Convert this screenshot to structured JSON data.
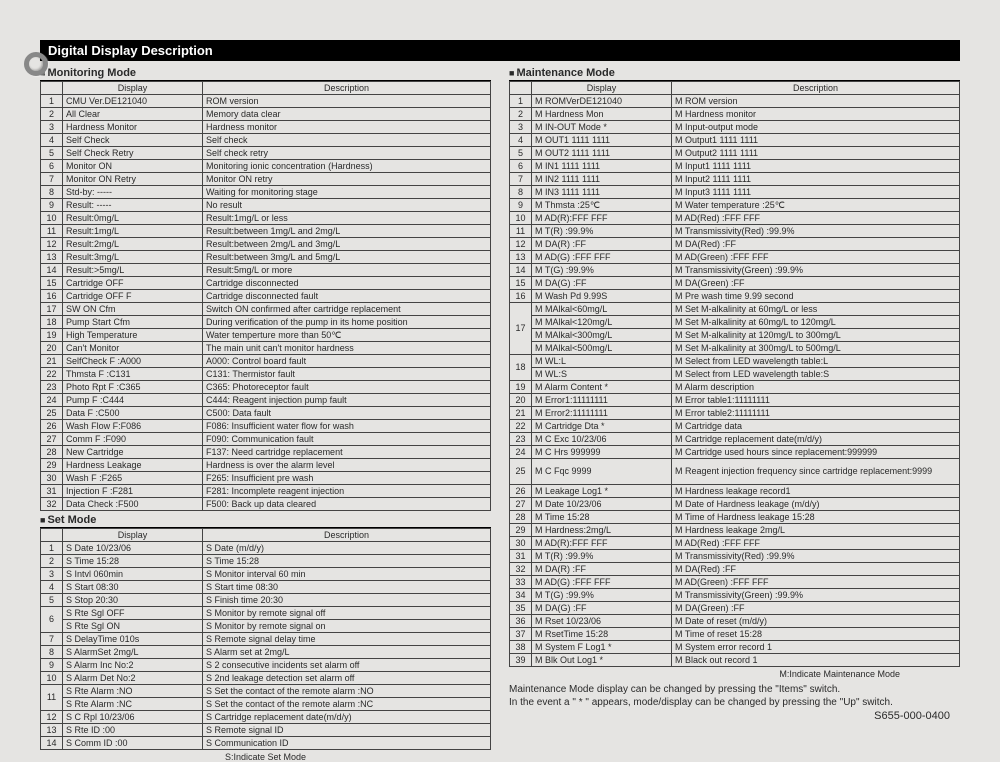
{
  "title": "Digital  Display  Description",
  "partNumber": "S655-000-0400",
  "footnote1": "Maintenance Mode display can be changed by pressing the \"Items\" switch.",
  "footnote2": "In the event a \" * \" appears, mode/display can be changed by pressing the \"Up\" switch.",
  "monitor": {
    "header": "Monitoring  Mode",
    "colDisplay": "Display",
    "colDesc": "Description",
    "rows": [
      {
        "n": "1",
        "d": "CMU Ver.DE121040",
        "e": "ROM version"
      },
      {
        "n": "2",
        "d": "All Clear",
        "e": "Memory data clear"
      },
      {
        "n": "3",
        "d": "Hardness Monitor",
        "e": "Hardness monitor"
      },
      {
        "n": "4",
        "d": "Self Check",
        "e": "Self check"
      },
      {
        "n": "5",
        "d": "Self Check Retry",
        "e": "Self check retry"
      },
      {
        "n": "6",
        "d": "Monitor ON",
        "e": "Monitoring ionic concentration (Hardness)"
      },
      {
        "n": "7",
        "d": "Monitor ON Retry",
        "e": "Monitor ON retry"
      },
      {
        "n": "8",
        "d": "Std-by: -----",
        "e": "Waiting for monitoring stage"
      },
      {
        "n": "9",
        "d": "Result: -----",
        "e": "No result"
      },
      {
        "n": "10",
        "d": "Result:0mg/L",
        "e": "Result:1mg/L or less"
      },
      {
        "n": "11",
        "d": "Result:1mg/L",
        "e": "Result:between 1mg/L and 2mg/L"
      },
      {
        "n": "12",
        "d": "Result:2mg/L",
        "e": "Result:between 2mg/L and 3mg/L"
      },
      {
        "n": "13",
        "d": "Result:3mg/L",
        "e": "Result:between 3mg/L and 5mg/L"
      },
      {
        "n": "14",
        "d": "Result:>5mg/L",
        "e": "Result:5mg/L or more"
      },
      {
        "n": "15",
        "d": "Cartridge OFF",
        "e": "Cartridge disconnected"
      },
      {
        "n": "16",
        "d": "Cartridge OFF F",
        "e": "Cartridge disconnected fault"
      },
      {
        "n": "17",
        "d": "SW ON Cfm",
        "e": "Switch ON confirmed after cartridge replacement"
      },
      {
        "n": "18",
        "d": "Pump Start Cfm",
        "e": "During verification of the pump in its home position"
      },
      {
        "n": "19",
        "d": "High Temperature",
        "e": "Water temperture more than 50℃"
      },
      {
        "n": "20",
        "d": "Can't Monitor",
        "e": "The main unit can't monitor hardness"
      },
      {
        "n": "21",
        "d": "SelfCheck F :A000",
        "e": "A000: Control board fault"
      },
      {
        "n": "22",
        "d": "Thmsta F    :C131",
        "e": "C131: Thermistor fault"
      },
      {
        "n": "23",
        "d": "Photo Rpt F :C365",
        "e": "C365: Photoreceptor fault"
      },
      {
        "n": "24",
        "d": "Pump F      :C444",
        "e": "C444: Reagent injection pump fault"
      },
      {
        "n": "25",
        "d": "Data F      :C500",
        "e": "C500: Data fault"
      },
      {
        "n": "26",
        "d": "Wash Flow F:F086",
        "e": "F086: Insufficient water flow for wash"
      },
      {
        "n": "27",
        "d": "Comm F     :F090",
        "e": "F090: Communication fault"
      },
      {
        "n": "28",
        "d": "New Cartridge",
        "e": "F137: Need cartridge replacement"
      },
      {
        "n": "29",
        "d": "Hardness Leakage",
        "e": "Hardness is over the alarm level"
      },
      {
        "n": "30",
        "d": "Wash F      :F265",
        "e": "F265: Insufficient pre wash"
      },
      {
        "n": "31",
        "d": "Injection F  :F281",
        "e": "F281: Incomplete reagent injection"
      },
      {
        "n": "32",
        "d": "Data Check  :F500",
        "e": "F500: Back up data cleared"
      }
    ]
  },
  "set": {
    "header": "Set  Mode",
    "colDisplay": "Display",
    "colDesc": "Description",
    "bottomNote": "S:Indicate Set Mode",
    "rows": [
      {
        "n": "1",
        "d": "S Date 10/23/06",
        "e": "S Date (m/d/y)"
      },
      {
        "n": "2",
        "d": "S Time 15:28",
        "e": "S Time 15:28"
      },
      {
        "n": "3",
        "d": "S Intvl 060min",
        "e": "S Monitor interval 60 min"
      },
      {
        "n": "4",
        "d": "S Start 08:30",
        "e": "S Start time 08:30"
      },
      {
        "n": "5",
        "d": "S Stop 20:30",
        "e": "S Finish time 20:30"
      },
      {
        "n": "6",
        "d": "S Rte Sgl OFF",
        "e": "S Monitor by remote signal off",
        "span": 2
      },
      {
        "n": "",
        "d": "S Rte Sgl ON",
        "e": "S Monitor by remote signal on"
      },
      {
        "n": "7",
        "d": "S DelayTime 010s",
        "e": "S Remote signal delay time"
      },
      {
        "n": "8",
        "d": "S AlarmSet 2mg/L",
        "e": "S Alarm set at 2mg/L"
      },
      {
        "n": "9",
        "d": "S Alarm Inc No:2",
        "e": "S 2 consecutive incidents set alarm off"
      },
      {
        "n": "10",
        "d": "S Alarm Det No:2",
        "e": "S 2nd leakage detection set alarm off"
      },
      {
        "n": "11",
        "d": "S Rte Alarm :NO",
        "e": "S Set the contact of the remote alarm :NO",
        "span": 2
      },
      {
        "n": "",
        "d": "S Rte Alarm :NC",
        "e": "S Set the contact of the remote alarm :NC"
      },
      {
        "n": "12",
        "d": "S C Rpl 10/23/06",
        "e": "S Cartridge replacement date(m/d/y)"
      },
      {
        "n": "13",
        "d": "S Rte ID :00",
        "e": "S Remote signal ID"
      },
      {
        "n": "14",
        "d": "S Comm ID :00",
        "e": "S Communication ID"
      }
    ]
  },
  "maint": {
    "header": "Maintenance  Mode",
    "colDisplay": "Display",
    "colDesc": "Description",
    "bottomNote": "M:Indicate Maintenance Mode",
    "rows": [
      {
        "n": "1",
        "d": "M ROMVerDE121040",
        "e": "M ROM version"
      },
      {
        "n": "2",
        "d": "M Hardness Mon",
        "e": "M Hardness monitor"
      },
      {
        "n": "3",
        "d": "M IN-OUT Mode  *",
        "e": "M Input-output mode"
      },
      {
        "n": "4",
        "d": "M OUT1 1111 1111",
        "e": "M Output1 1111 1111"
      },
      {
        "n": "5",
        "d": "M OUT2 1111 1111",
        "e": "M Output2 1111 1111"
      },
      {
        "n": "6",
        "d": "M IN1 1111 1111",
        "e": "M Input1 1111 1111"
      },
      {
        "n": "7",
        "d": "M IN2 1111 1111",
        "e": "M Input2 1111 1111"
      },
      {
        "n": "8",
        "d": "M IN3 1111 1111",
        "e": "M Input3 1111 1111"
      },
      {
        "n": "9",
        "d": "M Thmsta :25℃",
        "e": "M Water temperature :25℃"
      },
      {
        "n": "10",
        "d": "M AD(R):FFF FFF",
        "e": "M AD(Red) :FFF FFF"
      },
      {
        "n": "11",
        "d": "M T(R) :99.9%",
        "e": "M Transmissivity(Red) :99.9%"
      },
      {
        "n": "12",
        "d": "M DA(R) :FF",
        "e": "M DA(Red) :FF"
      },
      {
        "n": "13",
        "d": "M AD(G) :FFF FFF",
        "e": "M AD(Green) :FFF FFF"
      },
      {
        "n": "14",
        "d": "M T(G) :99.9%",
        "e": "M Transmissivity(Green) :99.9%"
      },
      {
        "n": "15",
        "d": "M DA(G) :FF",
        "e": "M DA(Green) :FF"
      },
      {
        "n": "16",
        "d": "M Wash Pd 9.99S",
        "e": "M Pre wash time 9.99 second"
      },
      {
        "n": "17",
        "d": "M MAlkal<60mg/L",
        "e": "M Set M-alkalinity at 60mg/L or less",
        "span": 4
      },
      {
        "n": "",
        "d": "M MAlkal<120mg/L",
        "e": "M Set M-alkalinity at 60mg/L to 120mg/L"
      },
      {
        "n": "",
        "d": "M MAlkal<300mg/L",
        "e": "M Set M-alkalinity at 120mg/L to 300mg/L"
      },
      {
        "n": "",
        "d": "M MAlkal<500mg/L",
        "e": "M Set M-alkalinity at 300mg/L to 500mg/L"
      },
      {
        "n": "18",
        "d": "M WL:L",
        "e": "M Select from LED wavelength table:L",
        "span": 2
      },
      {
        "n": "",
        "d": "M WL:S",
        "e": "M Select from LED wavelength table:S"
      },
      {
        "n": "19",
        "d": "M Alarm Content *",
        "e": "M Alarm description"
      },
      {
        "n": "20",
        "d": "M Error1:11111111",
        "e": "M Error table1:11111111"
      },
      {
        "n": "21",
        "d": "M Error2:11111111",
        "e": "M Error table2:11111111"
      },
      {
        "n": "22",
        "d": "M Cartridge Dta *",
        "e": "M Cartridge data"
      },
      {
        "n": "23",
        "d": "M C Exc 10/23/06",
        "e": "M Cartridge replacement date(m/d/y)"
      },
      {
        "n": "24",
        "d": "M C Hrs 999999",
        "e": "M Cartridge used hours since replacement:999999"
      },
      {
        "n": "25",
        "d": "M C Fqc 9999",
        "e": "M Reagent injection frequency since cartridge replacement:9999",
        "tall": 1
      },
      {
        "n": "26",
        "d": "M Leakage Log1 *",
        "e": "M Hardness leakage record1"
      },
      {
        "n": "27",
        "d": "M Date 10/23/06",
        "e": "M Date of Hardness leakage (m/d/y)"
      },
      {
        "n": "28",
        "d": "M Time 15:28",
        "e": "M Time of Hardness leakage 15:28"
      },
      {
        "n": "29",
        "d": "M Hardness:2mg/L",
        "e": "M Hardness leakage 2mg/L"
      },
      {
        "n": "30",
        "d": "M AD(R):FFF FFF",
        "e": "M AD(Red) :FFF FFF"
      },
      {
        "n": "31",
        "d": "M T(R) :99.9%",
        "e": "M Transmissivity(Red) :99.9%"
      },
      {
        "n": "32",
        "d": "M DA(R) :FF",
        "e": "M DA(Red) :FF"
      },
      {
        "n": "33",
        "d": "M AD(G) :FFF FFF",
        "e": "M AD(Green) :FFF FFF"
      },
      {
        "n": "34",
        "d": "M T(G) :99.9%",
        "e": "M Transmissivity(Green) :99.9%"
      },
      {
        "n": "35",
        "d": "M DA(G) :FF",
        "e": "M DA(Green) :FF"
      },
      {
        "n": "36",
        "d": "M Rset 10/23/06",
        "e": "M Date of reset (m/d/y)"
      },
      {
        "n": "37",
        "d": "M RsetTime 15:28",
        "e": "M Time of reset 15:28"
      },
      {
        "n": "38",
        "d": "M System F Log1 *",
        "e": "M System error record 1"
      },
      {
        "n": "39",
        "d": "M Blk Out Log1  *",
        "e": "M Black out record 1"
      }
    ]
  }
}
